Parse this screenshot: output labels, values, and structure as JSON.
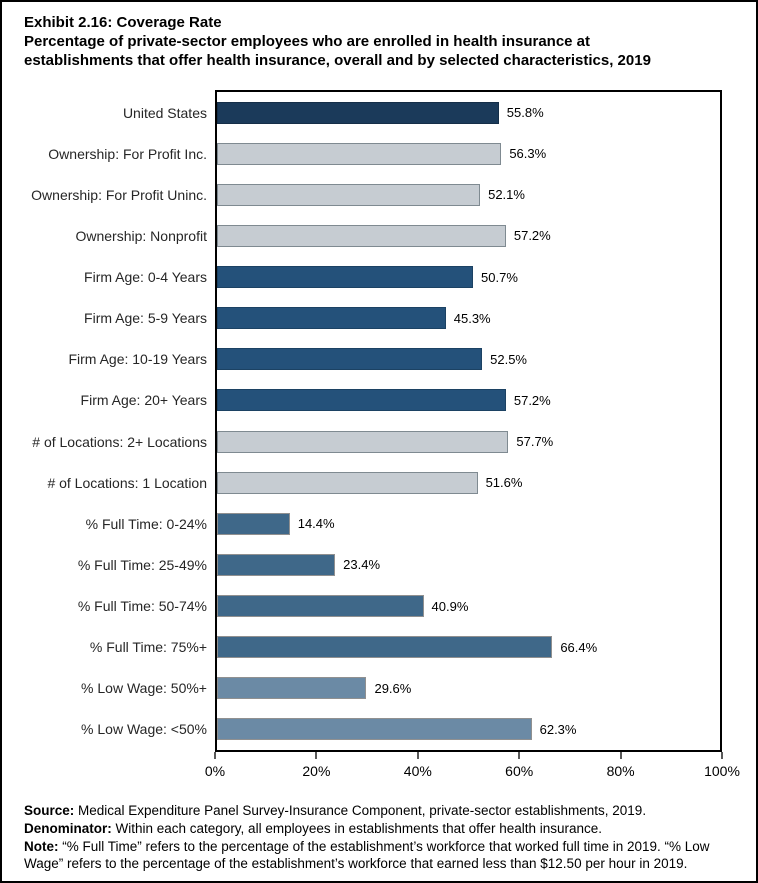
{
  "title": "Exhibit 2.16: Coverage Rate",
  "subtitle": "Percentage of private-sector employees who are enrolled in health insurance at establishments that offer health insurance, overall and by selected characteristics, 2019",
  "chart_data": {
    "type": "bar",
    "orientation": "horizontal",
    "title": "Exhibit 2.16: Coverage Rate",
    "subtitle": "Percentage of private-sector employees who are enrolled in health insurance at establishments that offer health insurance, overall and by selected characteristics, 2019",
    "xlim": [
      0,
      100
    ],
    "x_ticks": [
      "0%",
      "20%",
      "40%",
      "60%",
      "80%",
      "100%"
    ],
    "x_tick_values": [
      0,
      20,
      40,
      60,
      80,
      100
    ],
    "grid": false,
    "legend": false,
    "groups": {
      "overall": {
        "fill": "#1B3A5A",
        "border": "#152E48"
      },
      "ownership": {
        "fill": "#C6CCD2",
        "border": "#7F8A91"
      },
      "firm_age": {
        "fill": "#24517A",
        "border": "#1C4263"
      },
      "locations": {
        "fill": "#C6CCD2",
        "border": "#7F8A91"
      },
      "full_time": {
        "fill": "#3F6889",
        "border": "#909090"
      },
      "low_wage": {
        "fill": "#6B8AA5",
        "border": "#909090"
      }
    },
    "bars": [
      {
        "label": "United States",
        "value": 55.8,
        "display": "55.8%",
        "group": "overall"
      },
      {
        "label": "Ownership: For Profit Inc.",
        "value": 56.3,
        "display": "56.3%",
        "group": "ownership"
      },
      {
        "label": "Ownership: For Profit Uninc.",
        "value": 52.1,
        "display": "52.1%",
        "group": "ownership"
      },
      {
        "label": "Ownership: Nonprofit",
        "value": 57.2,
        "display": "57.2%",
        "group": "ownership"
      },
      {
        "label": "Firm Age: 0-4 Years",
        "value": 50.7,
        "display": "50.7%",
        "group": "firm_age"
      },
      {
        "label": "Firm Age: 5-9 Years",
        "value": 45.3,
        "display": "45.3%",
        "group": "firm_age"
      },
      {
        "label": "Firm Age: 10-19 Years",
        "value": 52.5,
        "display": "52.5%",
        "group": "firm_age"
      },
      {
        "label": "Firm Age: 20+ Years",
        "value": 57.2,
        "display": "57.2%",
        "group": "firm_age"
      },
      {
        "label": "# of Locations: 2+ Locations",
        "value": 57.7,
        "display": "57.7%",
        "group": "locations"
      },
      {
        "label": "# of Locations: 1 Location",
        "value": 51.6,
        "display": "51.6%",
        "group": "locations"
      },
      {
        "label": "% Full Time: 0-24%",
        "value": 14.4,
        "display": "14.4%",
        "group": "full_time"
      },
      {
        "label": "% Full Time: 25-49%",
        "value": 23.4,
        "display": "23.4%",
        "group": "full_time"
      },
      {
        "label": "% Full Time: 50-74%",
        "value": 40.9,
        "display": "40.9%",
        "group": "full_time"
      },
      {
        "label": "% Full Time: 75%+",
        "value": 66.4,
        "display": "66.4%",
        "group": "full_time"
      },
      {
        "label": "% Low Wage: 50%+",
        "value": 29.6,
        "display": "29.6%",
        "group": "low_wage"
      },
      {
        "label": "% Low Wage: <50%",
        "value": 62.3,
        "display": "62.3%",
        "group": "low_wage"
      }
    ]
  },
  "footnotes": {
    "source_label": "Source:",
    "source_text": " Medical Expenditure Panel Survey-Insurance Component, private-sector establishments, 2019.",
    "denominator_label": "Denominator:",
    "denominator_text": " Within each category, all employees in establishments that offer health insurance.",
    "note_label": "Note:",
    "note_text": " “% Full Time” refers to the percentage of the establishment’s workforce that worked full time in 2019. “% Low Wage” refers to the percentage of the establishment’s workforce that earned less than $12.50 per hour in 2019."
  }
}
